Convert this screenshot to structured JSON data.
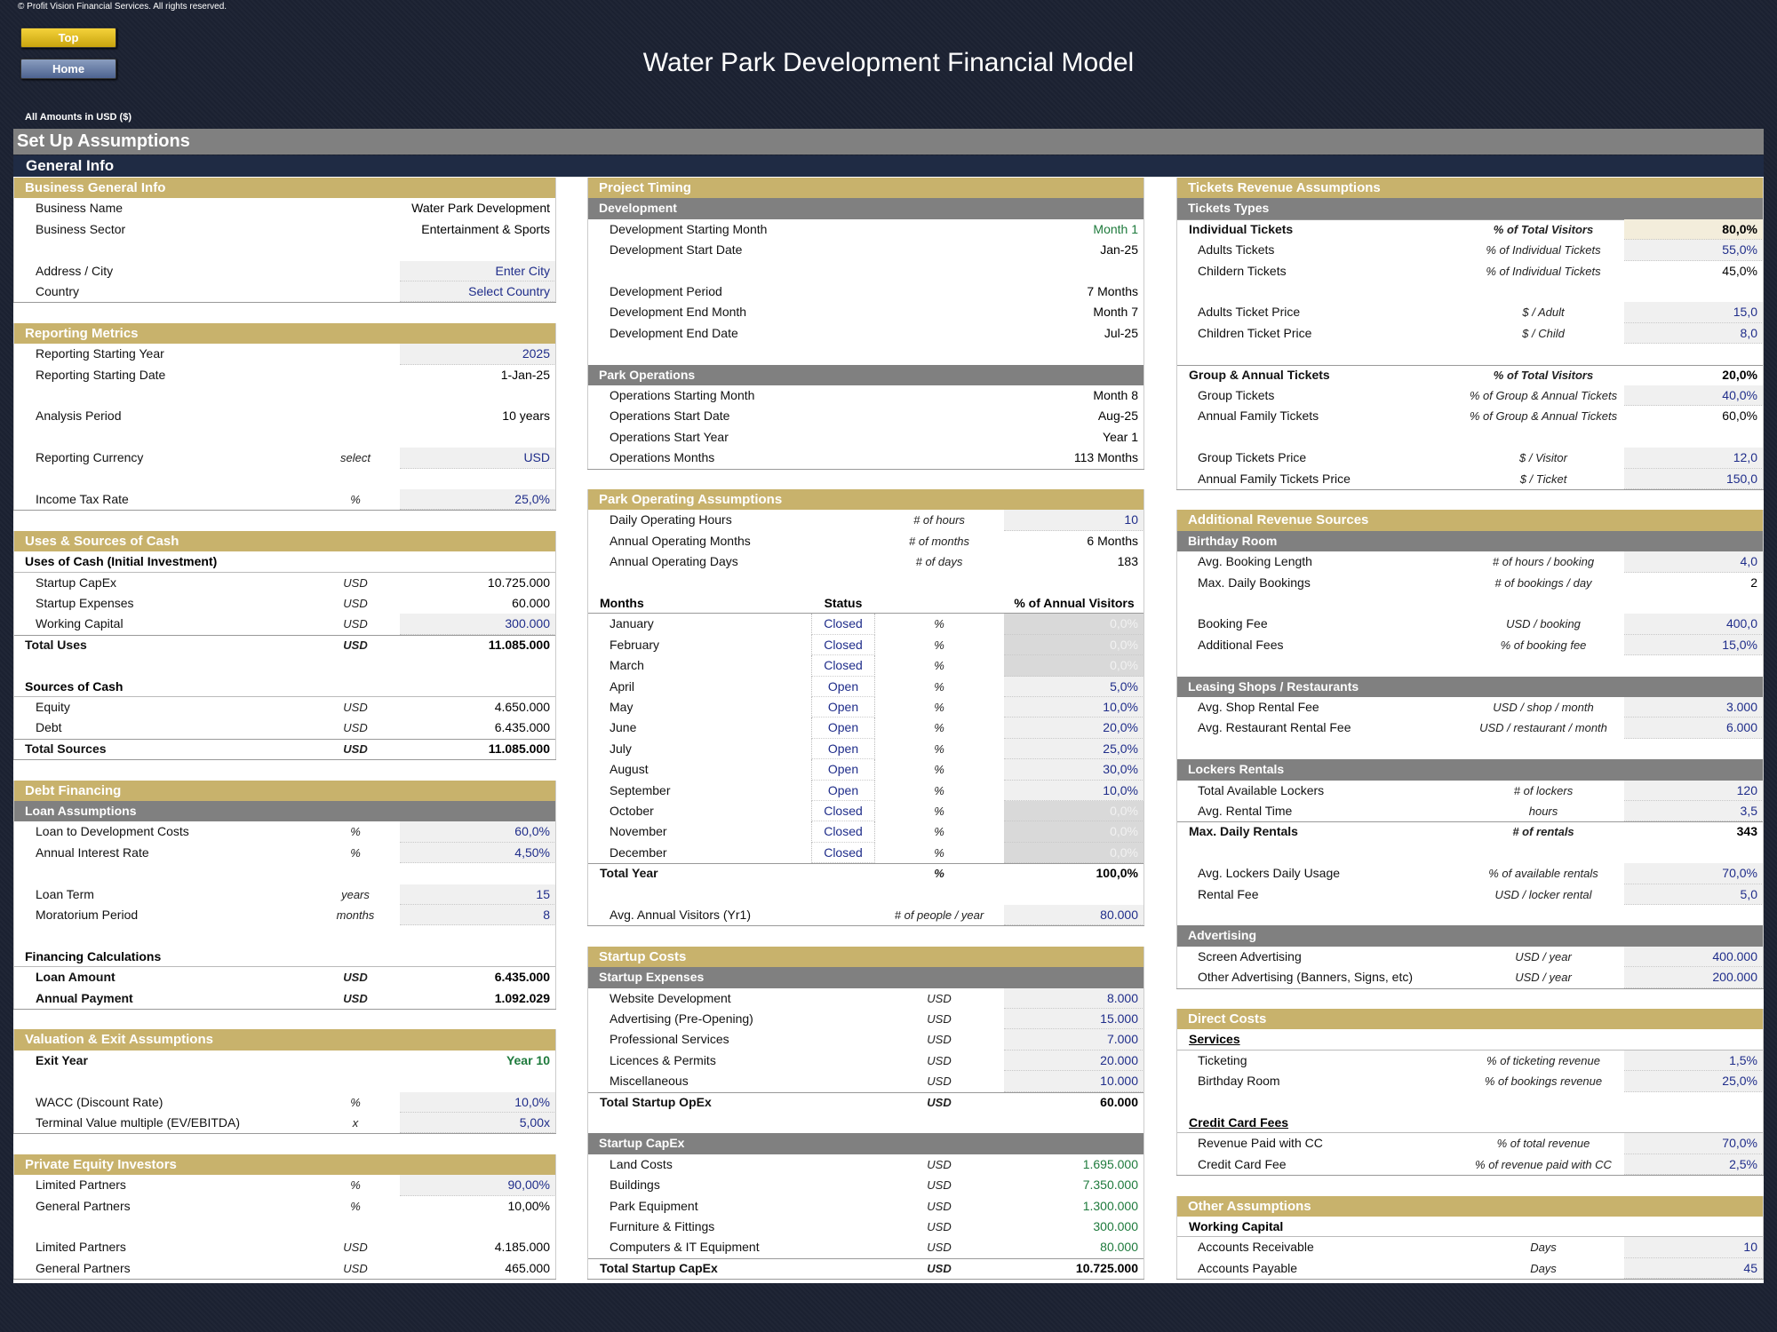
{
  "header": {
    "copyright": "© Profit Vision Financial Services. All rights reserved.",
    "buttons": [
      "Top",
      "Home"
    ],
    "title": "Water Park Development Financial Model",
    "amounts_note": "All Amounts in  USD ($)"
  },
  "bars": {
    "page": "Set Up Assumptions",
    "group": "General Info"
  },
  "columns": [
    {
      "sections": [
        {
          "title": "Business General Info",
          "rows": [
            {
              "label": "Business Name",
              "value": "Water Park Development"
            },
            {
              "label": "Business Sector",
              "value": "Entertainment & Sports"
            },
            {
              "label": "Address / City",
              "value": "Enter City",
              "input": true
            },
            {
              "label": "Country",
              "value": "Select Country",
              "input": true
            }
          ]
        },
        {
          "title": "Reporting Metrics",
          "rows": [
            {
              "label": "Reporting Starting Year",
              "value": "2025",
              "input": true
            },
            {
              "label": "Reporting Starting Date",
              "value": "1-Jan-25"
            },
            {
              "label": "Analysis Period",
              "value": "10 years"
            },
            {
              "label": "Reporting Currency",
              "unit": "select",
              "value": "USD",
              "input": true
            },
            {
              "label": "Income Tax Rate",
              "unit": "%",
              "value": "25,0%",
              "input": true
            }
          ]
        },
        {
          "title": "Uses & Sources of Cash",
          "rows": [
            {
              "subtitle": "Uses of Cash (Initial Investment)"
            },
            {
              "label": "Startup CapEx",
              "unit": "USD",
              "value": "10.725.000"
            },
            {
              "label": "Startup Expenses",
              "unit": "USD",
              "value": "60.000"
            },
            {
              "label": "Working Capital",
              "unit": "USD",
              "value": "300.000",
              "input": true
            },
            {
              "label": "Total Uses",
              "unit": "USD",
              "value": "11.085.000",
              "total": true
            },
            {
              "subtitle": "Sources of Cash"
            },
            {
              "label": "Equity",
              "unit": "USD",
              "value": "4.650.000"
            },
            {
              "label": "Debt",
              "unit": "USD",
              "value": "6.435.000"
            },
            {
              "label": "Total Sources",
              "unit": "USD",
              "value": "11.085.000",
              "total": true
            }
          ]
        },
        {
          "title": "Debt Financing",
          "rows": [
            {
              "heading": "Loan Assumptions"
            },
            {
              "label": "Loan to Development Costs",
              "unit": "%",
              "value": "60,0%",
              "input": true
            },
            {
              "label": "Annual Interest Rate",
              "unit": "%",
              "value": "4,50%",
              "input": true
            },
            {
              "label": "Loan Term",
              "unit": "years",
              "value": "15",
              "input": true
            },
            {
              "label": "Moratorium Period",
              "unit": "months",
              "value": "8",
              "input": true
            },
            {
              "subtitle": "Financing Calculations"
            },
            {
              "label": "Loan Amount",
              "unit": "USD",
              "value": "6.435.000",
              "bold": true
            },
            {
              "label": "Annual Payment",
              "unit": "USD",
              "value": "1.092.029",
              "bold": true
            }
          ]
        },
        {
          "title": "Valuation & Exit Assumptions",
          "rows": [
            {
              "label": "Exit Year",
              "value": "Year 10",
              "bold": true,
              "color": "#1e7a3c"
            },
            {
              "label": "WACC (Discount Rate)",
              "unit": "%",
              "value": "10,0%",
              "input": true
            },
            {
              "label": "Terminal Value multiple (EV/EBITDA)",
              "unit": "x",
              "value": "5,00x",
              "input": true
            }
          ]
        },
        {
          "title": "Private Equity Investors",
          "rows": [
            {
              "label": "Limited Partners",
              "unit": "%",
              "value": "90,00%",
              "input": true
            },
            {
              "label": "General Partners",
              "unit": "%",
              "value": "10,00%"
            },
            {
              "label": "Limited Partners",
              "unit": "USD",
              "value": "4.185.000"
            },
            {
              "label": "General Partners",
              "unit": "USD",
              "value": "465.000"
            }
          ]
        }
      ]
    },
    {
      "sections": [
        {
          "title": "Project Timing",
          "rows": [
            {
              "heading": "Development"
            },
            {
              "label": "Development Starting Month",
              "value": "Month 1",
              "color": "#1e7a3c"
            },
            {
              "label": "Development Start Date",
              "value": "Jan-25"
            },
            {
              "label": "Development Period",
              "value": "7 Months"
            },
            {
              "label": "Development End Month",
              "value": "Month 7"
            },
            {
              "label": "Development End Date",
              "value": "Jul-25"
            },
            {
              "heading": "Park Operations"
            },
            {
              "label": "Operations Starting Month",
              "value": "Month 8"
            },
            {
              "label": "Operations Start Date",
              "value": "Aug-25"
            },
            {
              "label": "Operations Start Year",
              "value": "Year 1"
            },
            {
              "label": "Operations Months",
              "value": "113 Months"
            }
          ]
        },
        {
          "title": "Park Operating Assumptions",
          "rows": [
            {
              "label": "Daily Operating Hours",
              "unit": "# of hours",
              "value": "10",
              "input": true
            },
            {
              "label": "Annual Operating Months",
              "unit": "# of months",
              "value": "6 Months"
            },
            {
              "label": "Annual Operating Days",
              "unit": "# of days",
              "value": "183"
            },
            {
              "columns": [
                "Months",
                "Status",
                "% of Annual Visitors"
              ]
            },
            {
              "label": "January",
              "status": "Closed",
              "unit": "%",
              "value": "0,0%",
              "fill": "#d9d9d9",
              "color": "#f2f2f2"
            },
            {
              "label": "February",
              "status": "Closed",
              "unit": "%",
              "value": "0,0%",
              "fill": "#d9d9d9",
              "color": "#f2f2f2"
            },
            {
              "label": "March",
              "status": "Closed",
              "unit": "%",
              "value": "0,0%",
              "fill": "#d9d9d9",
              "color": "#f2f2f2"
            },
            {
              "label": "April",
              "status": "Open",
              "unit": "%",
              "value": "5,0%",
              "input": true
            },
            {
              "label": "May",
              "status": "Open",
              "unit": "%",
              "value": "10,0%",
              "input": true
            },
            {
              "label": "June",
              "status": "Open",
              "unit": "%",
              "value": "20,0%",
              "input": true
            },
            {
              "label": "July",
              "status": "Open",
              "unit": "%",
              "value": "25,0%",
              "input": true
            },
            {
              "label": "August",
              "status": "Open",
              "unit": "%",
              "value": "30,0%",
              "input": true
            },
            {
              "label": "September",
              "status": "Open",
              "unit": "%",
              "value": "10,0%",
              "input": true
            },
            {
              "label": "October",
              "status": "Closed",
              "unit": "%",
              "value": "0,0%",
              "fill": "#d9d9d9",
              "color": "#f2f2f2"
            },
            {
              "label": "November",
              "status": "Closed",
              "unit": "%",
              "value": "0,0%",
              "fill": "#d9d9d9",
              "color": "#f2f2f2"
            },
            {
              "label": "December",
              "status": "Closed",
              "unit": "%",
              "value": "0,0%",
              "fill": "#d9d9d9",
              "color": "#f2f2f2"
            },
            {
              "label": "Total Year",
              "unit": "%",
              "value": "100,0%",
              "total": true
            },
            {
              "label": "Avg. Annual Visitors (Yr1)",
              "unit": "# of people / year",
              "value": "80.000",
              "input": true
            }
          ]
        },
        {
          "title": "Startup Costs",
          "rows": [
            {
              "heading": "Startup Expenses"
            },
            {
              "label": "Website Development",
              "unit": "USD",
              "value": "8.000",
              "input": true
            },
            {
              "label": "Advertising (Pre-Opening)",
              "unit": "USD",
              "value": "15.000",
              "input": true
            },
            {
              "label": "Professional Services",
              "unit": "USD",
              "value": "7.000",
              "input": true
            },
            {
              "label": "Licences & Permits",
              "unit": "USD",
              "value": "20.000",
              "input": true
            },
            {
              "label": "Miscellaneous",
              "unit": "USD",
              "value": "10.000",
              "input": true
            },
            {
              "label": "Total Startup OpEx",
              "unit": "USD",
              "value": "60.000",
              "total": true
            },
            {
              "heading": "Startup CapEx"
            },
            {
              "label": "Land Costs",
              "unit": "USD",
              "value": "1.695.000",
              "color": "#1e7a3c"
            },
            {
              "label": "Buildings",
              "unit": "USD",
              "value": "7.350.000",
              "color": "#1e7a3c"
            },
            {
              "label": "Park Equipment",
              "unit": "USD",
              "value": "1.300.000",
              "color": "#1e7a3c"
            },
            {
              "label": "Furniture & Fittings",
              "unit": "USD",
              "value": "300.000",
              "color": "#1e7a3c"
            },
            {
              "label": "Computers & IT Equipment",
              "unit": "USD",
              "value": "80.000",
              "color": "#1e7a3c"
            },
            {
              "label": "Total Startup CapEx",
              "unit": "USD",
              "value": "10.725.000",
              "total": true
            }
          ]
        }
      ]
    },
    {
      "sections": [
        {
          "title": "Tickets Revenue Assumptions",
          "rows": [
            {
              "heading": "Tickets Types"
            },
            {
              "label": "Individual Tickets",
              "unit": "% of Total Visitors",
              "value": "80,0%",
              "total": true,
              "fill": "#f3eddb"
            },
            {
              "label": "Adults Tickets",
              "unit": "% of Individual Tickets",
              "value": "55,0%",
              "input": true
            },
            {
              "label": "Childern Tickets",
              "unit": "% of Individual Tickets",
              "value": "45,0%"
            },
            {
              "label": "Adults Ticket Price",
              "unit": "$ / Adult",
              "value": "15,0",
              "input": true
            },
            {
              "label": "Children Ticket Price",
              "unit": "$ / Child",
              "value": "8,0",
              "input": true
            },
            {
              "label": "Group & Annual Tickets",
              "unit": "% of Total Visitors",
              "value": "20,0%",
              "total": true
            },
            {
              "label": "Group Tickets",
              "unit": "% of Group & Annual Tickets",
              "value": "40,0%",
              "input": true
            },
            {
              "label": "Annual Family Tickets",
              "unit": "% of Group & Annual Tickets",
              "value": "60,0%"
            },
            {
              "label": "Group Tickets Price",
              "unit": "$ / Visitor",
              "value": "12,0",
              "input": true
            },
            {
              "label": "Annual Family Tickets Price",
              "unit": "$ / Ticket",
              "value": "150,0",
              "input": true
            }
          ]
        },
        {
          "title": "Additional Revenue Sources",
          "rows": [
            {
              "heading": "Birthday Room"
            },
            {
              "label": "Avg. Booking Length",
              "unit": "# of hours / booking",
              "value": "4,0",
              "input": true
            },
            {
              "label": "Max. Daily Bookings",
              "unit": "# of bookings / day",
              "value": "2"
            },
            {
              "label": "Booking Fee",
              "unit": "USD / booking",
              "value": "400,0",
              "input": true
            },
            {
              "label": "Additional Fees",
              "unit": "% of booking fee",
              "value": "15,0%",
              "input": true
            },
            {
              "heading": "Leasing Shops / Restaurants"
            },
            {
              "label": "Avg. Shop Rental Fee",
              "unit": "USD / shop / month",
              "value": "3.000",
              "input": true
            },
            {
              "label": "Avg. Restaurant Rental Fee",
              "unit": "USD / restaurant / month",
              "value": "6.000",
              "input": true
            },
            {
              "heading": "Lockers Rentals"
            },
            {
              "label": "Total Available Lockers",
              "unit": "# of lockers",
              "value": "120",
              "input": true
            },
            {
              "label": "Avg. Rental Time",
              "unit": "hours",
              "value": "3,5",
              "input": true
            },
            {
              "label": "Max. Daily Rentals",
              "unit": "# of rentals",
              "value": "343",
              "total": true
            },
            {
              "label": "Avg. Lockers Daily Usage",
              "unit": "% of available rentals",
              "value": "70,0%",
              "input": true
            },
            {
              "label": "Rental Fee",
              "unit": "USD / locker rental",
              "value": "5,0",
              "input": true
            },
            {
              "heading": "Advertising"
            },
            {
              "label": "Screen Advertising",
              "unit": "USD / year",
              "value": "400.000",
              "input": true
            },
            {
              "label": "Other Advertising (Banners, Signs, etc)",
              "unit": "USD / year",
              "value": "200.000",
              "input": true
            }
          ]
        },
        {
          "title": "Direct Costs",
          "rows": [
            {
              "subtitle": "Services",
              "underline": true
            },
            {
              "label": "Ticketing",
              "unit": "% of ticketing revenue",
              "value": "1,5%",
              "input": true
            },
            {
              "label": "Birthday Room",
              "unit": "% of bookings revenue",
              "value": "25,0%",
              "input": true
            },
            {
              "subtitle": "Credit Card Fees",
              "underline": true
            },
            {
              "label": "Revenue Paid with CC",
              "unit": "% of total revenue",
              "value": "70,0%",
              "input": true
            },
            {
              "label": "Credit Card Fee",
              "unit": "% of revenue paid with CC",
              "value": "2,5%",
              "input": true
            }
          ]
        },
        {
          "title": "Other Assumptions",
          "rows": [
            {
              "subtitle": "Working Capital"
            },
            {
              "label": "Accounts Receivable",
              "unit": "Days",
              "value": "10",
              "input": true
            },
            {
              "label": "Accounts Payable",
              "unit": "Days",
              "value": "45",
              "input": true
            }
          ]
        }
      ]
    }
  ]
}
